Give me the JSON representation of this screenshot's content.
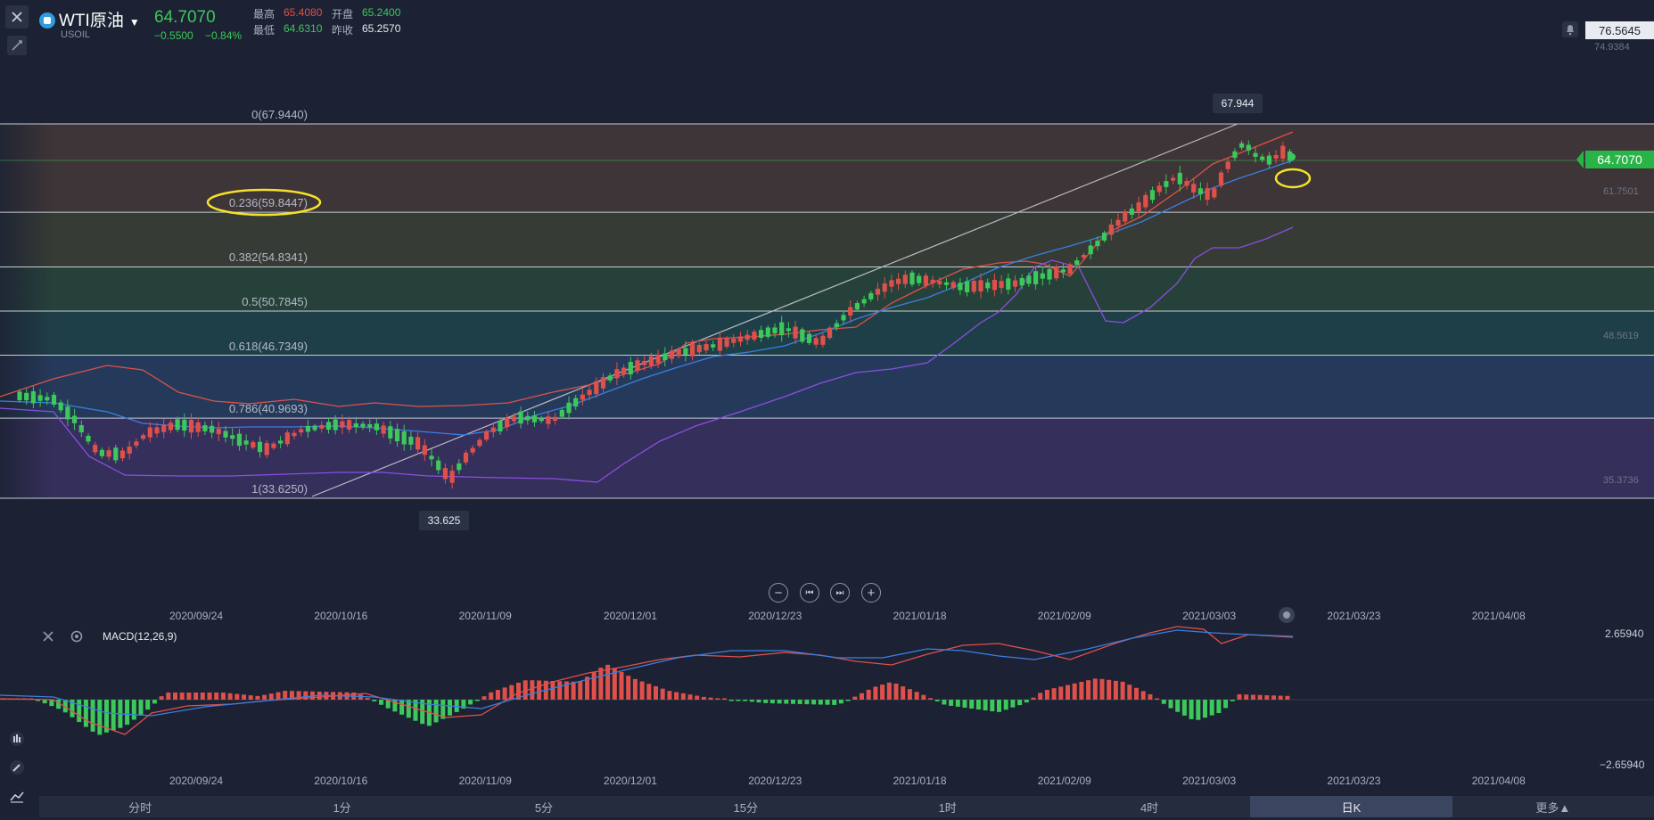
{
  "header": {
    "symbol_name": "WTI原油",
    "symbol_code": "USOIL",
    "last_price": "64.7070",
    "change": "−0.5500",
    "change_pct": "−0.84%",
    "high_label": "最高",
    "high_value": "65.4080",
    "low_label": "最低",
    "low_value": "64.6310",
    "open_label": "开盘",
    "open_value": "65.2400",
    "prev_close_label": "昨收",
    "prev_close_value": "65.2570"
  },
  "right_axis": {
    "top_value": "76.5645",
    "ticks": [
      "74.9384",
      "61.7501",
      "48.5619",
      "35.3736"
    ],
    "current_price_tag": "64.7070"
  },
  "fib_levels": [
    {
      "label": "0(67.9440)",
      "value": 67.944
    },
    {
      "label": "0.236(59.8447)",
      "value": 59.8447
    },
    {
      "label": "0.382(54.8341)",
      "value": 54.8341
    },
    {
      "label": "0.5(50.7845)",
      "value": 50.7845
    },
    {
      "label": "0.618(46.7349)",
      "value": 46.7349
    },
    {
      "label": "0.786(40.9693)",
      "value": 40.9693
    },
    {
      "label": "1(33.6250)",
      "value": 33.625
    }
  ],
  "extremes": {
    "high_label": "67.944",
    "low_label": "33.625"
  },
  "date_axis": [
    "2020/09/24",
    "2020/10/16",
    "2020/11/09",
    "2020/12/01",
    "2020/12/23",
    "2021/01/18",
    "2021/02/09",
    "2021/03/03",
    "2021/03/23",
    "2021/04/08"
  ],
  "macd": {
    "label": "MACD(12,26,9)",
    "top_value": "2.65940",
    "bottom_value": "−2.65940"
  },
  "timeframe_tabs": [
    "分时",
    "1分",
    "5分",
    "15分",
    "1时",
    "4时",
    "日K",
    "更多▲"
  ],
  "active_tab": "日K",
  "colors": {
    "background": "#1c2233",
    "up": "#e0504a",
    "down": "#3cc85a",
    "ma_blue": "#3a7fe0",
    "band_purple": "#8a4fe0",
    "highlight_ellipse": "#f5e22a"
  },
  "icons": [
    "close-icon",
    "draw-tool-icon",
    "bell-icon",
    "zoom-out-icon",
    "skip-start-icon",
    "skip-end-icon",
    "zoom-in-icon",
    "settings-icon",
    "indicator-icon",
    "pencil-icon",
    "line-tool-icon"
  ]
}
